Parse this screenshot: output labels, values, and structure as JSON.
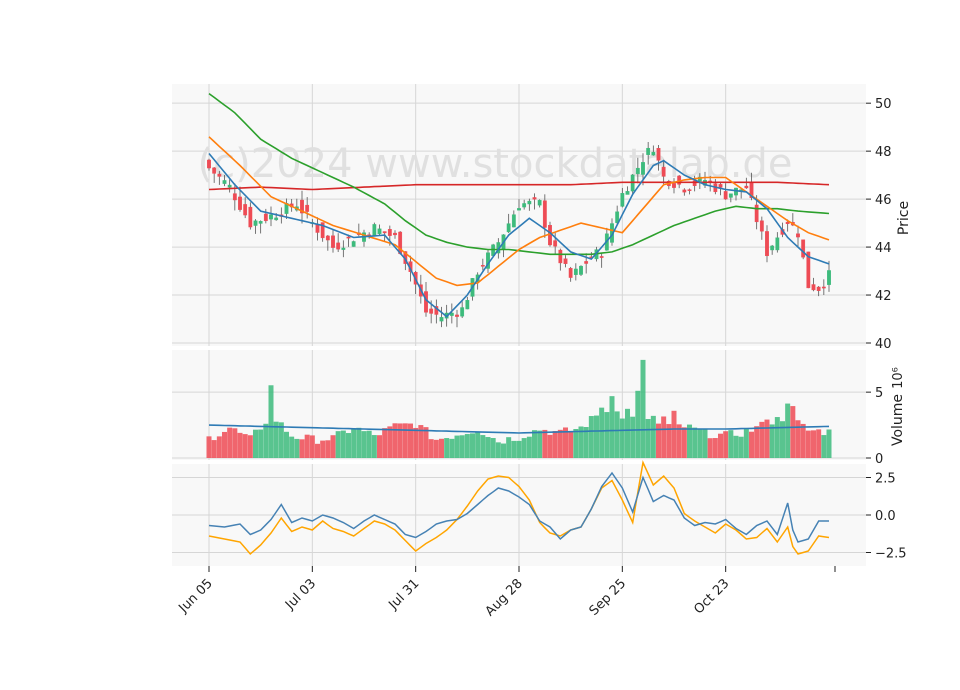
{
  "watermark": "(c)2024 www.stockdatalab.de",
  "colors": {
    "up": "#3dbb7c",
    "down": "#ee4b55",
    "panel_bg": "#f8f8f8",
    "grid": "#d6d6d6",
    "ma_fast": "#2e7bb5",
    "ma_mid": "#ff7f0e",
    "ma_slow": "#2ca02c",
    "ma_long": "#d62728",
    "vol_ma": "#2e7bb5",
    "osc_1": "#4682b4",
    "osc_2": "#ffa500"
  },
  "chart_data": {
    "type": "candlestick",
    "x_tick_labels": [
      "Jun 05",
      "Jul 03",
      "Jul 31",
      "Aug 28",
      "Sep 25",
      "Oct 23"
    ],
    "x_tick_index": [
      0,
      20,
      40,
      60,
      80,
      100
    ],
    "n_sessions": 121,
    "anchors": {
      "close": [
        [
          0,
          47.3
        ],
        [
          4,
          46.5
        ],
        [
          8,
          45.0
        ],
        [
          12,
          45.3
        ],
        [
          17,
          45.8
        ],
        [
          20,
          45.0
        ],
        [
          24,
          44.0
        ],
        [
          28,
          44.4
        ],
        [
          32,
          44.8
        ],
        [
          36,
          44.4
        ],
        [
          39,
          43.0
        ],
        [
          42,
          41.3
        ],
        [
          45,
          41.1
        ],
        [
          49,
          41.4
        ],
        [
          52,
          43.0
        ],
        [
          56,
          44.2
        ],
        [
          60,
          45.8
        ],
        [
          64,
          45.8
        ],
        [
          66,
          44.2
        ],
        [
          70,
          42.7
        ],
        [
          74,
          43.6
        ],
        [
          76,
          43.8
        ],
        [
          80,
          46.2
        ],
        [
          84,
          47.7
        ],
        [
          86,
          48.2
        ],
        [
          88,
          46.9
        ],
        [
          92,
          46.5
        ],
        [
          96,
          46.8
        ],
        [
          100,
          46.2
        ],
        [
          104,
          46.5
        ],
        [
          108,
          43.8
        ],
        [
          112,
          45.1
        ],
        [
          114,
          44.6
        ],
        [
          116,
          42.4
        ],
        [
          118,
          42.3
        ],
        [
          120,
          42.8
        ]
      ],
      "volume": [
        [
          0,
          1.5
        ],
        [
          4,
          2.3
        ],
        [
          8,
          1.4
        ],
        [
          12,
          3.3
        ],
        [
          16,
          1.7
        ],
        [
          20,
          1.4
        ],
        [
          24,
          1.5
        ],
        [
          28,
          2.3
        ],
        [
          32,
          1.7
        ],
        [
          36,
          2.4
        ],
        [
          40,
          2.6
        ],
        [
          44,
          1.4
        ],
        [
          48,
          1.8
        ],
        [
          52,
          2.2
        ],
        [
          56,
          1.3
        ],
        [
          60,
          1.6
        ],
        [
          64,
          2.2
        ],
        [
          68,
          1.9
        ],
        [
          72,
          2.3
        ],
        [
          76,
          3.5
        ],
        [
          80,
          3.9
        ],
        [
          84,
          2.8
        ],
        [
          88,
          2.4
        ],
        [
          92,
          2.4
        ],
        [
          96,
          1.9
        ],
        [
          100,
          1.7
        ],
        [
          104,
          2.0
        ],
        [
          108,
          2.6
        ],
        [
          112,
          3.2
        ],
        [
          116,
          2.1
        ],
        [
          120,
          2.0
        ]
      ]
    },
    "volume_spikes": [
      [
        12,
        5.4
      ],
      [
        76,
        4.0
      ],
      [
        77,
        3.5
      ],
      [
        78,
        5.0
      ],
      [
        80,
        2.9
      ],
      [
        83,
        4.9
      ],
      [
        84,
        7.3
      ],
      [
        86,
        3.3
      ],
      [
        88,
        3.1
      ],
      [
        90,
        3.3
      ],
      [
        112,
        4.4
      ],
      [
        113,
        3.7
      ],
      [
        108,
        3.2
      ]
    ],
    "moving_averages": {
      "ma_fast": [
        [
          0,
          47.9
        ],
        [
          5,
          46.6
        ],
        [
          10,
          45.5
        ],
        [
          16,
          45.2
        ],
        [
          22,
          44.9
        ],
        [
          28,
          44.4
        ],
        [
          34,
          44.5
        ],
        [
          38,
          43.5
        ],
        [
          42,
          41.8
        ],
        [
          46,
          41.1
        ],
        [
          50,
          42.0
        ],
        [
          54,
          43.3
        ],
        [
          58,
          44.5
        ],
        [
          62,
          45.2
        ],
        [
          66,
          44.6
        ],
        [
          70,
          43.8
        ],
        [
          74,
          43.5
        ],
        [
          78,
          44.5
        ],
        [
          82,
          46.2
        ],
        [
          86,
          47.4
        ],
        [
          88,
          47.6
        ],
        [
          92,
          47.0
        ],
        [
          96,
          46.6
        ],
        [
          100,
          46.4
        ],
        [
          104,
          46.3
        ],
        [
          108,
          45.6
        ],
        [
          112,
          44.4
        ],
        [
          116,
          43.6
        ],
        [
          120,
          43.3
        ]
      ],
      "ma_mid": [
        [
          0,
          48.6
        ],
        [
          6,
          47.4
        ],
        [
          12,
          46.1
        ],
        [
          18,
          45.5
        ],
        [
          24,
          44.9
        ],
        [
          30,
          44.5
        ],
        [
          36,
          44.1
        ],
        [
          40,
          43.4
        ],
        [
          44,
          42.7
        ],
        [
          48,
          42.4
        ],
        [
          52,
          42.5
        ],
        [
          56,
          43.2
        ],
        [
          60,
          43.9
        ],
        [
          64,
          44.4
        ],
        [
          68,
          44.7
        ],
        [
          72,
          45.0
        ],
        [
          76,
          44.8
        ],
        [
          80,
          44.6
        ],
        [
          84,
          45.6
        ],
        [
          88,
          46.6
        ],
        [
          92,
          46.8
        ],
        [
          96,
          46.9
        ],
        [
          100,
          46.9
        ],
        [
          104,
          46.3
        ],
        [
          108,
          45.7
        ],
        [
          112,
          45.1
        ],
        [
          116,
          44.6
        ],
        [
          120,
          44.3
        ]
      ],
      "ma_slow": [
        [
          0,
          50.4
        ],
        [
          5,
          49.6
        ],
        [
          10,
          48.5
        ],
        [
          16,
          47.7
        ],
        [
          22,
          47.1
        ],
        [
          28,
          46.5
        ],
        [
          34,
          45.8
        ],
        [
          38,
          45.1
        ],
        [
          42,
          44.5
        ],
        [
          46,
          44.2
        ],
        [
          50,
          44.0
        ],
        [
          54,
          43.9
        ],
        [
          58,
          43.9
        ],
        [
          62,
          43.8
        ],
        [
          66,
          43.7
        ],
        [
          70,
          43.7
        ],
        [
          74,
          43.7
        ],
        [
          78,
          43.8
        ],
        [
          82,
          44.1
        ],
        [
          86,
          44.5
        ],
        [
          90,
          44.9
        ],
        [
          94,
          45.2
        ],
        [
          98,
          45.5
        ],
        [
          102,
          45.7
        ],
        [
          106,
          45.6
        ],
        [
          110,
          45.6
        ],
        [
          114,
          45.5
        ],
        [
          120,
          45.4
        ]
      ],
      "ma_long": [
        [
          0,
          46.4
        ],
        [
          10,
          46.5
        ],
        [
          20,
          46.4
        ],
        [
          30,
          46.5
        ],
        [
          40,
          46.6
        ],
        [
          50,
          46.6
        ],
        [
          60,
          46.6
        ],
        [
          70,
          46.6
        ],
        [
          80,
          46.7
        ],
        [
          90,
          46.7
        ],
        [
          100,
          46.7
        ],
        [
          110,
          46.7
        ],
        [
          120,
          46.6
        ]
      ],
      "volume_ma": [
        [
          0,
          2.5
        ],
        [
          10,
          2.4
        ],
        [
          20,
          2.3
        ],
        [
          30,
          2.2
        ],
        [
          40,
          2.1
        ],
        [
          50,
          2.0
        ],
        [
          60,
          1.9
        ],
        [
          70,
          2.0
        ],
        [
          80,
          2.1
        ],
        [
          90,
          2.2
        ],
        [
          100,
          2.2
        ],
        [
          110,
          2.3
        ],
        [
          120,
          2.4
        ]
      ]
    },
    "oscillator": {
      "osc_1": [
        [
          0,
          -0.7
        ],
        [
          3,
          -0.8
        ],
        [
          6,
          -0.6
        ],
        [
          8,
          -1.3
        ],
        [
          10,
          -1.0
        ],
        [
          12,
          -0.3
        ],
        [
          14,
          0.7
        ],
        [
          16,
          -0.5
        ],
        [
          18,
          -0.2
        ],
        [
          20,
          -0.4
        ],
        [
          22,
          0.0
        ],
        [
          24,
          -0.2
        ],
        [
          26,
          -0.5
        ],
        [
          28,
          -0.9
        ],
        [
          30,
          -0.4
        ],
        [
          32,
          0.0
        ],
        [
          34,
          -0.3
        ],
        [
          36,
          -0.6
        ],
        [
          38,
          -1.3
        ],
        [
          40,
          -1.5
        ],
        [
          42,
          -1.1
        ],
        [
          44,
          -0.6
        ],
        [
          46,
          -0.4
        ],
        [
          48,
          -0.3
        ],
        [
          50,
          0.1
        ],
        [
          52,
          0.7
        ],
        [
          54,
          1.3
        ],
        [
          56,
          1.8
        ],
        [
          58,
          1.6
        ],
        [
          60,
          1.2
        ],
        [
          62,
          0.7
        ],
        [
          64,
          -0.4
        ],
        [
          66,
          -0.8
        ],
        [
          68,
          -1.6
        ],
        [
          70,
          -1.0
        ],
        [
          72,
          -0.8
        ],
        [
          74,
          0.4
        ],
        [
          76,
          1.9
        ],
        [
          78,
          2.8
        ],
        [
          80,
          1.8
        ],
        [
          82,
          0.2
        ],
        [
          84,
          2.5
        ],
        [
          86,
          0.9
        ],
        [
          88,
          1.3
        ],
        [
          90,
          1.0
        ],
        [
          92,
          -0.2
        ],
        [
          94,
          -0.7
        ],
        [
          96,
          -0.5
        ],
        [
          98,
          -0.6
        ],
        [
          100,
          -0.3
        ],
        [
          102,
          -0.9
        ],
        [
          104,
          -1.3
        ],
        [
          106,
          -0.7
        ],
        [
          108,
          -0.4
        ],
        [
          110,
          -1.3
        ],
        [
          112,
          0.8
        ],
        [
          113,
          -1.0
        ],
        [
          114,
          -1.8
        ],
        [
          116,
          -1.6
        ],
        [
          118,
          -0.4
        ],
        [
          120,
          -0.4
        ]
      ],
      "osc_2": [
        [
          0,
          -1.4
        ],
        [
          3,
          -1.6
        ],
        [
          6,
          -1.8
        ],
        [
          8,
          -2.6
        ],
        [
          10,
          -2.0
        ],
        [
          12,
          -1.2
        ],
        [
          14,
          -0.2
        ],
        [
          16,
          -1.1
        ],
        [
          18,
          -0.8
        ],
        [
          20,
          -1.0
        ],
        [
          22,
          -0.4
        ],
        [
          24,
          -0.9
        ],
        [
          26,
          -1.1
        ],
        [
          28,
          -1.4
        ],
        [
          30,
          -0.9
        ],
        [
          32,
          -0.4
        ],
        [
          34,
          -0.6
        ],
        [
          36,
          -1.0
        ],
        [
          38,
          -1.7
        ],
        [
          40,
          -2.4
        ],
        [
          42,
          -1.9
        ],
        [
          44,
          -1.5
        ],
        [
          46,
          -1.0
        ],
        [
          48,
          -0.3
        ],
        [
          50,
          0.6
        ],
        [
          52,
          1.6
        ],
        [
          54,
          2.4
        ],
        [
          56,
          2.6
        ],
        [
          58,
          2.5
        ],
        [
          60,
          1.9
        ],
        [
          62,
          1.0
        ],
        [
          64,
          -0.5
        ],
        [
          66,
          -1.2
        ],
        [
          68,
          -1.4
        ],
        [
          70,
          -1.0
        ],
        [
          72,
          -0.8
        ],
        [
          74,
          0.4
        ],
        [
          76,
          1.8
        ],
        [
          78,
          2.3
        ],
        [
          80,
          1.0
        ],
        [
          82,
          -0.5
        ],
        [
          84,
          3.5
        ],
        [
          86,
          2.0
        ],
        [
          88,
          2.6
        ],
        [
          90,
          1.8
        ],
        [
          92,
          0.1
        ],
        [
          94,
          -0.4
        ],
        [
          96,
          -0.8
        ],
        [
          98,
          -1.2
        ],
        [
          100,
          -0.6
        ],
        [
          102,
          -1.0
        ],
        [
          104,
          -1.6
        ],
        [
          106,
          -1.5
        ],
        [
          108,
          -0.9
        ],
        [
          110,
          -1.8
        ],
        [
          112,
          -0.8
        ],
        [
          113,
          -2.1
        ],
        [
          114,
          -2.6
        ],
        [
          116,
          -2.4
        ],
        [
          118,
          -1.4
        ],
        [
          120,
          -1.5
        ]
      ]
    },
    "panels": {
      "price": {
        "ylabel": "Price",
        "ylim": [
          40,
          50.8
        ],
        "ticks": [
          40,
          42,
          44,
          46,
          48,
          50
        ],
        "tick_labels": [
          "40",
          "42",
          "44",
          "46",
          "48",
          "50"
        ]
      },
      "volume": {
        "ylabel": "Volume",
        "multiplier": "10⁶",
        "ylim": [
          0,
          8.2
        ],
        "ticks": [
          0,
          5
        ],
        "tick_labels": [
          "0",
          "5"
        ]
      },
      "oscillator": {
        "ylim": [
          -3.4,
          3.4
        ],
        "ticks": [
          2.5,
          0,
          -2.5
        ],
        "tick_labels": [
          "2.5",
          "0.0",
          "−2.5"
        ]
      }
    }
  }
}
